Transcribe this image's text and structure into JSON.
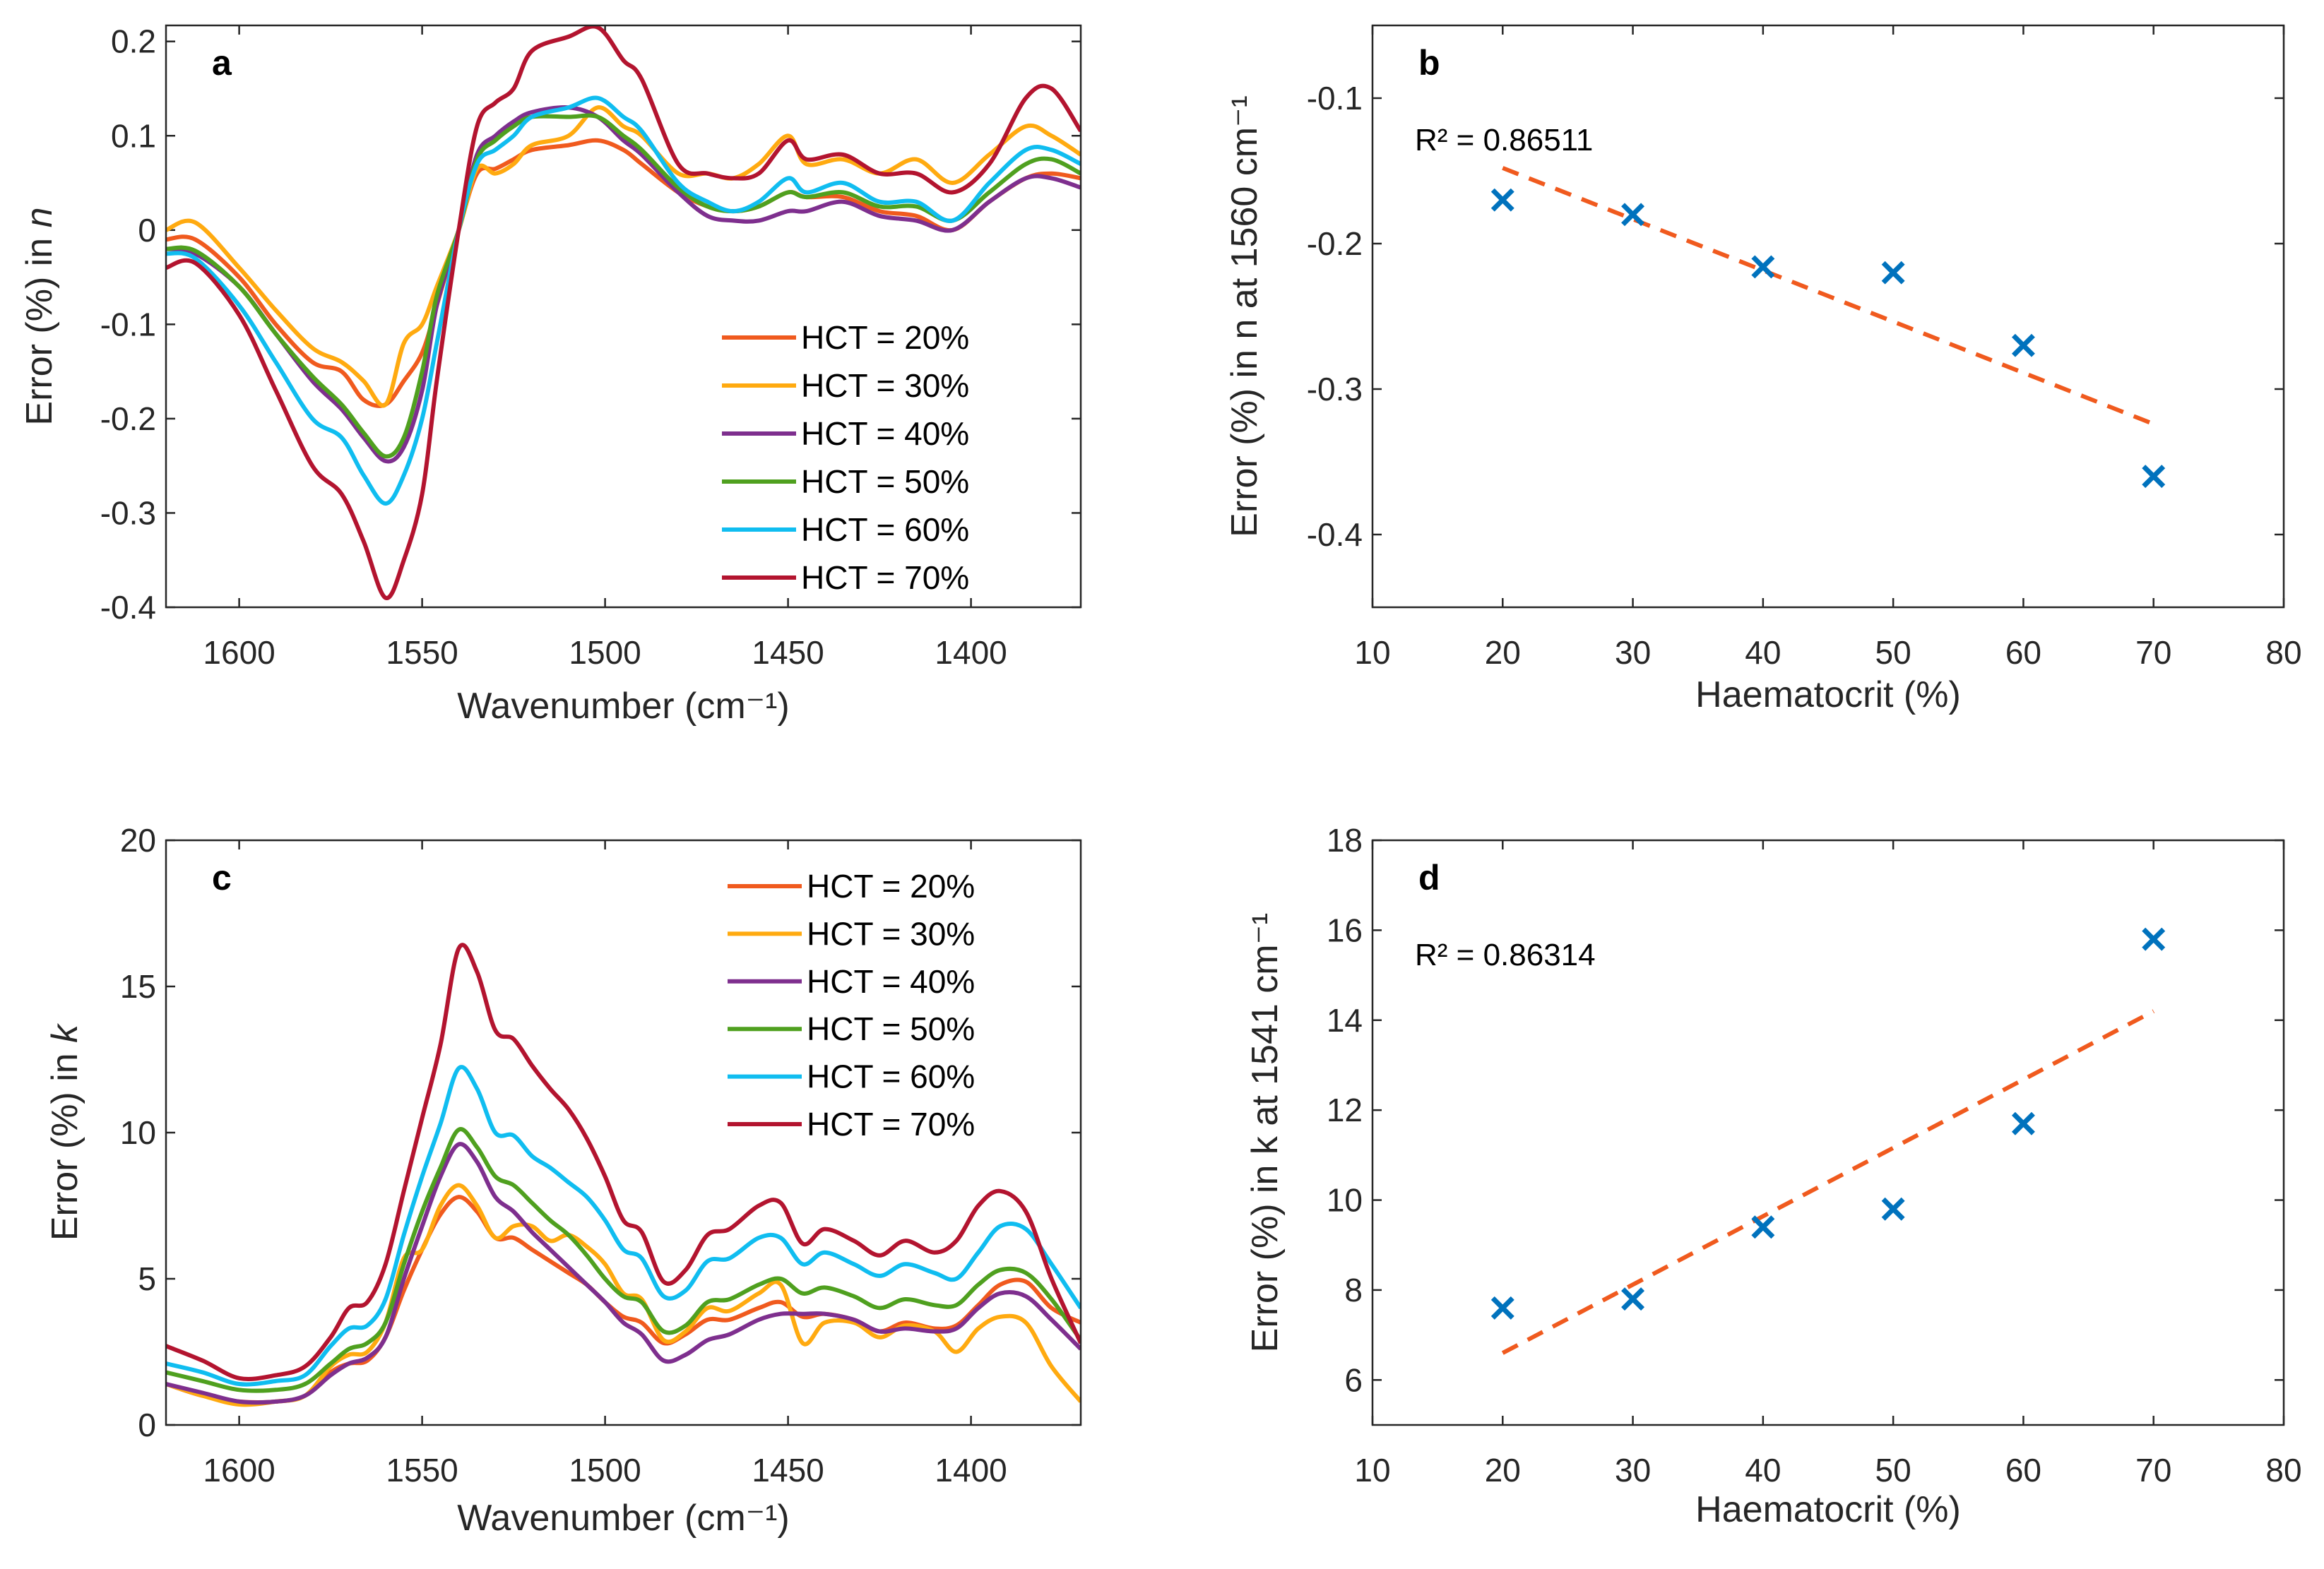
{
  "chart_data": [
    {
      "panel": "a",
      "type": "line",
      "xlabel": "Wavenumber (cm⁻¹)",
      "ylabel_prefix": "Error (%) in ",
      "ylabel_var": "n",
      "xlim": [
        1620,
        1370
      ],
      "x_reversed": true,
      "ylim": [
        -0.4,
        0.217
      ],
      "xticks": [
        1600,
        1550,
        1500,
        1450,
        1400
      ],
      "yticks": [
        -0.4,
        -0.3,
        -0.2,
        -0.1,
        0,
        0.1,
        0.2
      ],
      "ytick_labels": [
        "-0.4",
        "-0.3",
        "-0.2",
        "-0.1",
        "0",
        "0.1",
        "0.2"
      ],
      "legend_position": "bottom-right",
      "x": [
        1620,
        1612,
        1600,
        1590,
        1580,
        1572,
        1566,
        1560,
        1555,
        1550,
        1546,
        1540,
        1535,
        1530,
        1525,
        1520,
        1510,
        1502,
        1495,
        1490,
        1480,
        1472,
        1465,
        1458,
        1450,
        1445,
        1435,
        1425,
        1415,
        1405,
        1395,
        1385,
        1378,
        1370
      ],
      "series": [
        {
          "name": "HCT = 20%",
          "color": "#F05A1E",
          "values": [
            -0.01,
            -0.01,
            -0.05,
            -0.1,
            -0.14,
            -0.15,
            -0.18,
            -0.185,
            -0.16,
            -0.13,
            -0.08,
            0.0,
            0.06,
            0.065,
            0.075,
            0.085,
            0.09,
            0.095,
            0.085,
            0.07,
            0.04,
            0.025,
            0.02,
            0.025,
            0.04,
            0.035,
            0.035,
            0.02,
            0.015,
            0.0,
            0.03,
            0.055,
            0.06,
            0.055
          ]
        },
        {
          "name": "HCT = 30%",
          "color": "#FFAA10",
          "values": [
            0.0,
            0.008,
            -0.04,
            -0.085,
            -0.125,
            -0.14,
            -0.16,
            -0.185,
            -0.12,
            -0.1,
            -0.06,
            0.0,
            0.065,
            0.06,
            0.07,
            0.09,
            0.1,
            0.13,
            0.11,
            0.1,
            0.06,
            0.06,
            0.055,
            0.07,
            0.1,
            0.07,
            0.075,
            0.06,
            0.075,
            0.05,
            0.08,
            0.11,
            0.1,
            0.08
          ]
        },
        {
          "name": "HCT = 40%",
          "color": "#7E2F8E",
          "values": [
            -0.02,
            -0.025,
            -0.06,
            -0.11,
            -0.16,
            -0.19,
            -0.22,
            -0.245,
            -0.23,
            -0.17,
            -0.08,
            0.0,
            0.08,
            0.1,
            0.115,
            0.125,
            0.13,
            0.12,
            0.095,
            0.08,
            0.04,
            0.015,
            0.01,
            0.01,
            0.02,
            0.02,
            0.03,
            0.015,
            0.01,
            0.0,
            0.03,
            0.055,
            0.055,
            0.045
          ]
        },
        {
          "name": "HCT = 50%",
          "color": "#4FA01F",
          "values": [
            -0.02,
            -0.022,
            -0.06,
            -0.11,
            -0.155,
            -0.185,
            -0.215,
            -0.24,
            -0.22,
            -0.15,
            -0.07,
            0.0,
            0.075,
            0.095,
            0.11,
            0.12,
            0.12,
            0.12,
            0.1,
            0.085,
            0.045,
            0.025,
            0.02,
            0.025,
            0.04,
            0.035,
            0.04,
            0.025,
            0.025,
            0.01,
            0.04,
            0.07,
            0.075,
            0.06
          ]
        },
        {
          "name": "HCT = 60%",
          "color": "#10BDF0",
          "values": [
            -0.025,
            -0.03,
            -0.08,
            -0.14,
            -0.2,
            -0.22,
            -0.26,
            -0.29,
            -0.26,
            -0.2,
            -0.12,
            0.0,
            0.07,
            0.085,
            0.1,
            0.12,
            0.13,
            0.14,
            0.12,
            0.105,
            0.05,
            0.03,
            0.02,
            0.03,
            0.055,
            0.04,
            0.05,
            0.03,
            0.03,
            0.01,
            0.05,
            0.085,
            0.085,
            0.07
          ]
        },
        {
          "name": "HCT = 70%",
          "color": "#B3142F",
          "values": [
            -0.04,
            -0.035,
            -0.09,
            -0.17,
            -0.25,
            -0.28,
            -0.33,
            -0.39,
            -0.35,
            -0.28,
            -0.16,
            0.0,
            0.11,
            0.135,
            0.15,
            0.19,
            0.205,
            0.215,
            0.18,
            0.16,
            0.07,
            0.06,
            0.055,
            0.06,
            0.095,
            0.075,
            0.08,
            0.06,
            0.06,
            0.04,
            0.07,
            0.14,
            0.15,
            0.105
          ]
        }
      ]
    },
    {
      "panel": "b",
      "type": "scatter",
      "xlabel": "Haematocrit (%)",
      "ylabel": "Error (%) in n at 1560 cm⁻¹",
      "xlim": [
        10,
        80
      ],
      "ylim": [
        -0.45,
        -0.05
      ],
      "xticks": [
        10,
        20,
        30,
        40,
        50,
        60,
        70,
        80
      ],
      "yticks": [
        -0.4,
        -0.3,
        -0.2,
        -0.1
      ],
      "ytick_labels": [
        "-0.4",
        "-0.3",
        "-0.2",
        "-0.1"
      ],
      "annotation": "R² = 0.86511",
      "marker_color": "#0072BD",
      "fit_color": "#F05A1E",
      "x": [
        20,
        30,
        40,
        50,
        60,
        70
      ],
      "y": [
        -0.17,
        -0.18,
        -0.216,
        -0.22,
        -0.27,
        -0.36
      ],
      "fit": {
        "x": [
          20,
          70
        ],
        "y": [
          -0.148,
          -0.324
        ]
      }
    },
    {
      "panel": "c",
      "type": "line",
      "xlabel": "Wavenumber (cm⁻¹)",
      "ylabel_prefix": "Error (%) in ",
      "ylabel_var": "k",
      "xlim": [
        1620,
        1370
      ],
      "x_reversed": true,
      "ylim": [
        0,
        20
      ],
      "xticks": [
        1600,
        1550,
        1500,
        1450,
        1400
      ],
      "yticks": [
        0,
        5,
        10,
        15,
        20
      ],
      "ytick_labels": [
        "0",
        "5",
        "10",
        "15",
        "20"
      ],
      "legend_position": "top-right",
      "x": [
        1620,
        1610,
        1600,
        1590,
        1582,
        1575,
        1570,
        1565,
        1560,
        1555,
        1550,
        1545,
        1540,
        1535,
        1530,
        1525,
        1520,
        1515,
        1510,
        1505,
        1500,
        1495,
        1490,
        1484,
        1478,
        1472,
        1466,
        1458,
        1452,
        1446,
        1440,
        1432,
        1425,
        1418,
        1410,
        1404,
        1398,
        1392,
        1385,
        1378,
        1370
      ],
      "series": [
        {
          "name": "HCT = 20%",
          "color": "#F05A1E",
          "values": [
            1.4,
            1.0,
            0.8,
            0.8,
            1.0,
            1.8,
            2.1,
            2.2,
            3.0,
            4.6,
            6.0,
            7.2,
            7.8,
            7.3,
            6.4,
            6.4,
            6.0,
            5.6,
            5.2,
            4.8,
            4.2,
            3.7,
            3.5,
            2.8,
            3.1,
            3.6,
            3.6,
            4.0,
            4.2,
            3.7,
            3.8,
            3.6,
            3.2,
            3.5,
            3.3,
            3.4,
            4.1,
            4.8,
            4.9,
            4.0,
            3.5
          ]
        },
        {
          "name": "HCT = 30%",
          "color": "#FFAA10",
          "values": [
            1.4,
            1.0,
            0.7,
            0.8,
            1.0,
            2.0,
            2.4,
            2.5,
            3.5,
            5.7,
            6.0,
            7.5,
            8.2,
            7.5,
            6.4,
            6.8,
            6.8,
            6.3,
            6.5,
            6.1,
            5.5,
            4.5,
            4.3,
            2.9,
            3.2,
            4.0,
            3.9,
            4.5,
            4.8,
            2.8,
            3.5,
            3.5,
            3.0,
            3.4,
            3.2,
            2.5,
            3.3,
            3.7,
            3.5,
            2.0,
            0.8
          ]
        },
        {
          "name": "HCT = 40%",
          "color": "#7E2F8E",
          "values": [
            1.4,
            1.1,
            0.8,
            0.8,
            1.0,
            1.7,
            2.1,
            2.3,
            3.0,
            5.0,
            6.8,
            8.5,
            9.6,
            9.0,
            7.8,
            7.3,
            6.6,
            6.0,
            5.4,
            4.8,
            4.2,
            3.5,
            3.1,
            2.2,
            2.4,
            2.9,
            3.1,
            3.6,
            3.8,
            3.8,
            3.8,
            3.6,
            3.2,
            3.3,
            3.2,
            3.3,
            4.0,
            4.5,
            4.4,
            3.6,
            2.6
          ]
        },
        {
          "name": "HCT = 50%",
          "color": "#4FA01F",
          "values": [
            1.8,
            1.5,
            1.2,
            1.2,
            1.4,
            2.1,
            2.6,
            2.8,
            3.5,
            5.5,
            7.3,
            8.8,
            10.1,
            9.5,
            8.5,
            8.2,
            7.6,
            7.0,
            6.5,
            5.8,
            5.0,
            4.4,
            4.2,
            3.2,
            3.4,
            4.2,
            4.3,
            4.8,
            5.0,
            4.5,
            4.7,
            4.4,
            4.0,
            4.3,
            4.1,
            4.1,
            4.8,
            5.3,
            5.2,
            4.3,
            2.9
          ]
        },
        {
          "name": "HCT = 60%",
          "color": "#10BDF0",
          "values": [
            2.1,
            1.8,
            1.4,
            1.5,
            1.7,
            2.7,
            3.3,
            3.4,
            4.3,
            6.5,
            8.5,
            10.3,
            12.2,
            11.5,
            10.0,
            9.9,
            9.2,
            8.8,
            8.3,
            7.8,
            7.0,
            6.0,
            5.7,
            4.4,
            4.6,
            5.6,
            5.7,
            6.4,
            6.4,
            5.5,
            5.9,
            5.5,
            5.1,
            5.5,
            5.2,
            5.0,
            5.9,
            6.8,
            6.7,
            5.5,
            4.0
          ]
        },
        {
          "name": "HCT = 70%",
          "color": "#B3142F",
          "values": [
            2.7,
            2.2,
            1.6,
            1.7,
            2.0,
            3.0,
            4.0,
            4.2,
            5.5,
            8.0,
            10.5,
            13.0,
            16.3,
            15.5,
            13.5,
            13.2,
            12.3,
            11.5,
            10.8,
            9.8,
            8.5,
            7.0,
            6.6,
            4.9,
            5.3,
            6.5,
            6.7,
            7.5,
            7.6,
            6.2,
            6.7,
            6.3,
            5.8,
            6.3,
            5.9,
            6.3,
            7.5,
            8.0,
            7.3,
            5.0,
            2.8
          ]
        }
      ]
    },
    {
      "panel": "d",
      "type": "scatter",
      "xlabel": "Haematocrit (%)",
      "ylabel": "Error (%) in k at 1541 cm⁻¹",
      "xlim": [
        10,
        80
      ],
      "ylim": [
        5,
        18
      ],
      "xticks": [
        10,
        20,
        30,
        40,
        50,
        60,
        70,
        80
      ],
      "yticks": [
        6,
        8,
        10,
        12,
        14,
        16,
        18
      ],
      "ytick_labels": [
        "6",
        "8",
        "10",
        "12",
        "14",
        "16",
        "18"
      ],
      "annotation": "R² = 0.86314",
      "marker_color": "#0072BD",
      "fit_color": "#F05A1E",
      "x": [
        20,
        30,
        40,
        50,
        60,
        70
      ],
      "y": [
        7.6,
        7.8,
        9.4,
        9.8,
        11.7,
        15.8
      ],
      "fit": {
        "x": [
          20,
          70
        ],
        "y": [
          6.6,
          14.2
        ]
      }
    }
  ]
}
